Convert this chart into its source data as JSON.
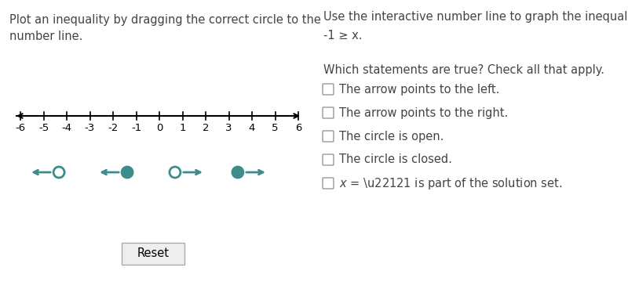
{
  "bg_color": "#ffffff",
  "left_title": "Plot an inequality by dragging the correct circle to the\nnumber line.",
  "right_title_line1": "Use the interactive number line to graph the inequality",
  "right_title_line2": "-1 ≥ x.",
  "right_subtitle": "Which statements are true? Check all that apply.",
  "checkboxes": [
    "The arrow points to the left.",
    "The arrow points to the right.",
    "The circle is open.",
    "The circle is closed.",
    "x = −1 is part of the solution set."
  ],
  "number_line_ticks": [
    -6,
    -5,
    -4,
    -3,
    -2,
    -1,
    0,
    1,
    2,
    3,
    4,
    5,
    6
  ],
  "teal_color": "#3d8c8c",
  "reset_button_label": "Reset",
  "title_fontsize": 10.5,
  "tick_fontsize": 9.5,
  "checkbox_fontsize": 10.5
}
